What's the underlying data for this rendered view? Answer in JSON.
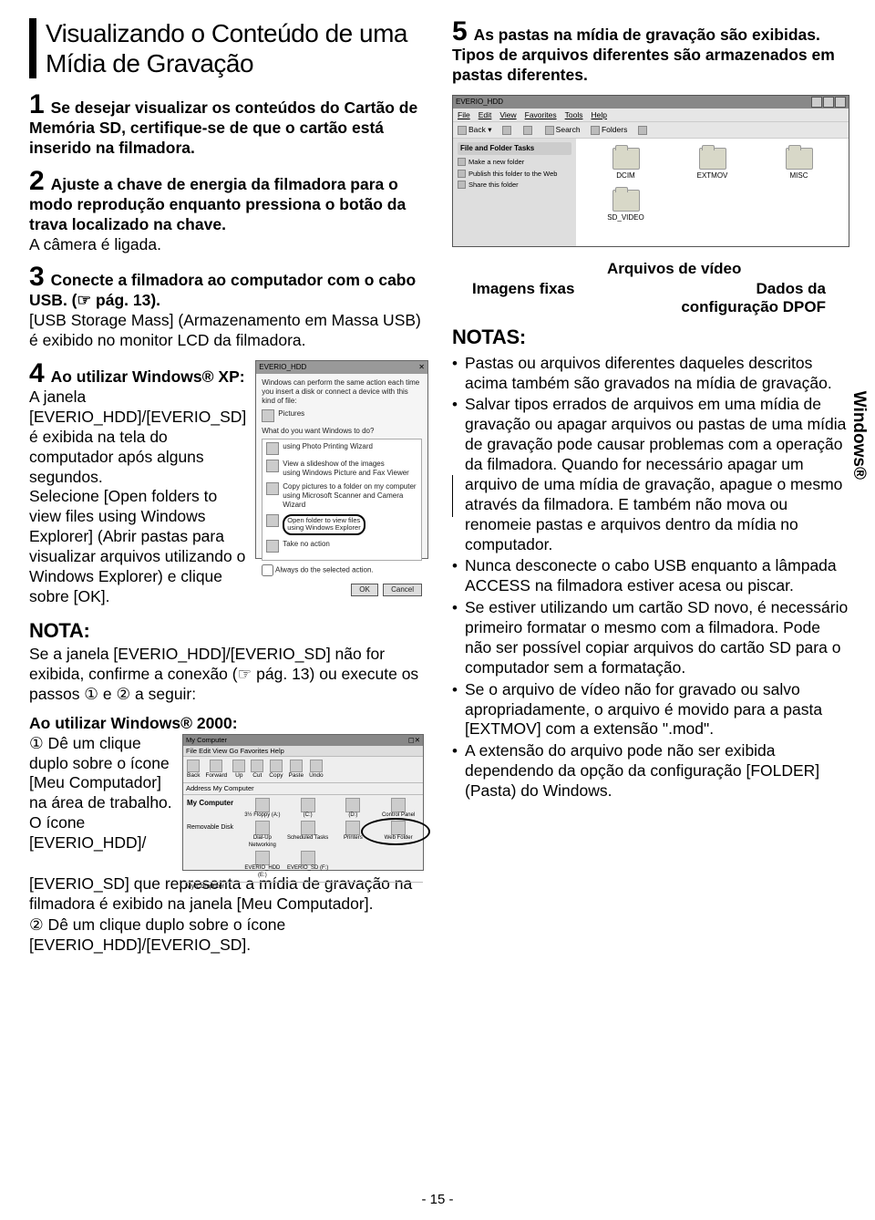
{
  "title": "Visualizando o Conteúdo de uma Mídia de Gravação",
  "steps": {
    "s1": {
      "n": "1",
      "bold": "Se desejar visualizar os conteúdos do Cartão de Memória SD, certifique-se de que o cartão está inserido na filmadora."
    },
    "s2": {
      "n": "2",
      "bold": "Ajuste a chave de energia da filmadora para o modo reprodução enquanto pressiona o botão da trava localizado na chave.",
      "sub": "A câmera é ligada."
    },
    "s3": {
      "n": "3",
      "bold": "Conecte a filmadora ao computador com o cabo USB. (☞ pág. 13).",
      "sub": "[USB Storage Mass] (Armazenamento em Massa USB) é exibido no monitor LCD da filmadora."
    },
    "s4": {
      "n": "4",
      "bold": "Ao utilizar Windows® XP:",
      "body": "A janela [EVERIO_HDD]/[EVERIO_SD] é exibida na tela do computador após alguns segundos.",
      "body2": "Selecione [Open folders to view files using Windows Explorer] (Abrir pastas para visualizar arquivos utilizando o Windows Explorer) e clique sobre [OK]."
    },
    "s5": {
      "n": "5",
      "bold": "As pastas na mídia de gravação são exibidas. Tipos de arquivos diferentes são armazenados em pastas diferentes."
    }
  },
  "nota": {
    "head": "NOTA:",
    "body": "Se a janela [EVERIO_HDD]/[EVERIO_SD] não for exibida, confirme a conexão (☞ pág. 13) ou execute os passos ① e ② a seguir:"
  },
  "w2000": {
    "head": "Ao utilizar Windows® 2000:",
    "b1a": "① Dê um clique duplo sobre o ícone [Meu Computador] na área de trabalho.",
    "b1b": "O ícone [EVERIO_HDD]/",
    "b1c": "[EVERIO_SD] que representa a mídia de gravação na filmadora é exibido na janela [Meu Computador].",
    "b2": "② Dê um clique duplo sobre o ícone [EVERIO_HDD]/[EVERIO_SD]."
  },
  "dialog1": {
    "title": "EVERIO_HDD",
    "intro": "Windows can perform the same action each time you insert a disk or connect a device with this kind of file:",
    "pictures": "Pictures",
    "what": "What do you want Windows to do?",
    "o1": "using Photo Printing Wizard",
    "o2a": "View a slideshow of the images",
    "o2b": "using Windows Picture and Fax Viewer",
    "o3a": "Copy pictures to a folder on my computer",
    "o3b": "using Microsoft Scanner and Camera Wizard",
    "o4a": "Open folder to view files",
    "o4b": "using Windows Explorer",
    "o5": "Take no action",
    "chk": "Always do the selected action.",
    "ok": "OK",
    "cancel": "Cancel"
  },
  "win2k": {
    "title": "My Computer",
    "menu": "File  Edit  View  Go  Favorites  Help",
    "tools": [
      "Back",
      "Forward",
      "Up",
      "Cut",
      "Copy",
      "Paste",
      "Undo"
    ],
    "addr": "Address  My Computer",
    "side": "My Computer",
    "rem": "Removable Disk",
    "icons": [
      "3½ Floppy (A:)",
      "(C:)",
      "(D:)",
      "Control Panel",
      "Dial-Up Networking",
      "Scheduled Tasks",
      "Printers",
      "Web Folder",
      "EVERIO_HDD (E:)",
      "EVERIO_SD (F:)"
    ],
    "status": "My Computer"
  },
  "explorer": {
    "title": "EVERIO_HDD",
    "menu": [
      "File",
      "Edit",
      "View",
      "Favorites",
      "Tools",
      "Help"
    ],
    "back": "Back",
    "search": "Search",
    "folders": "Folders",
    "taskhd": "File and Folder Tasks",
    "t1": "Make a new folder",
    "t2": "Publish this folder to the Web",
    "t3": "Share this folder",
    "folders_list": [
      "DCIM",
      "EXTMOV",
      "MISC",
      "SD_VIDEO"
    ]
  },
  "callouts": {
    "video": "Arquivos de vídeo",
    "imagens": "Imagens fixas",
    "dados": "Dados da",
    "dpof": "configuração DPOF"
  },
  "notas": {
    "head": "NOTAS:",
    "items": [
      "Pastas ou arquivos diferentes daqueles descritos acima também são gravados na mídia de gravação.",
      "Salvar tipos errados de arquivos em uma mídia de gravação ou apagar arquivos ou pastas de uma mídia de gravação pode causar problemas com a operação da filmadora. Quando for necessário apagar um arquivo de uma mídia de gravação, apague o mesmo através da filmadora. E também não mova ou renomeie pastas e arquivos dentro da mídia no computador.",
      "Nunca desconecte o cabo USB enquanto a lâmpada ACCESS  na filmadora estiver acesa ou piscar.",
      "Se estiver utilizando um cartão SD novo, é necessário primeiro formatar o mesmo com a filmadora. Pode não ser possível copiar arquivos do cartão SD para o computador sem a formatação.",
      "Se o arquivo de vídeo não for gravado ou salvo apropriadamente, o arquivo é movido para a pasta [EXTMOV] com a extensão \".mod\".",
      "A extensão do arquivo pode não ser exibida dependendo da opção da configuração [FOLDER] (Pasta) do Windows."
    ]
  },
  "sideTab": "Windows®",
  "pageNum": "- 15 -"
}
